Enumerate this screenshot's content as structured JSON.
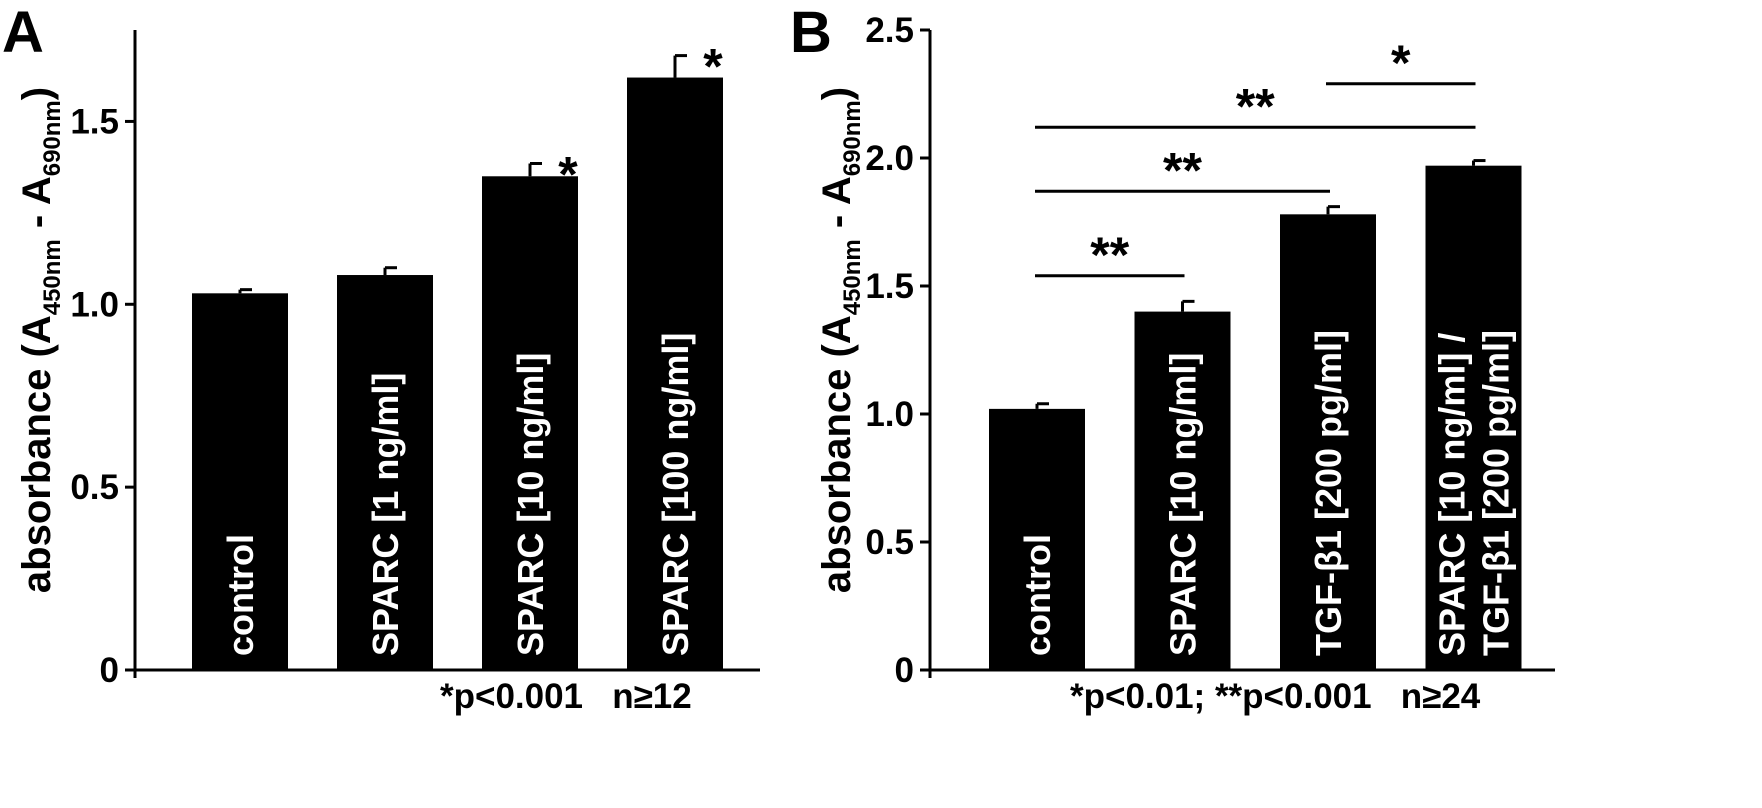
{
  "chart_data": [
    {
      "type": "bar",
      "panel_label": "A",
      "ylabel_main": "absorbance (A",
      "ylabel_sub1": "450nm",
      "ylabel_mid": " - A",
      "ylabel_sub2": "690nm",
      "ylabel_end": ")",
      "ylim": [
        0,
        1.75
      ],
      "yticks": [
        0,
        0.5,
        1.0,
        1.5
      ],
      "ytick_labels": [
        "0",
        "0.5",
        "1.0",
        "1.5"
      ],
      "categories": [
        "control",
        "SPARC [1 ng/ml]",
        "SPARC [10 ng/ml]",
        "SPARC [100 ng/ml]"
      ],
      "category_lines": [
        [
          "control"
        ],
        [
          "SPARC [1 ng/ml]"
        ],
        [
          "SPARC [10 ng/ml]"
        ],
        [
          "SPARC [100 ng/ml]"
        ]
      ],
      "values": [
        1.03,
        1.08,
        1.35,
        1.62
      ],
      "errors": [
        0.01,
        0.02,
        0.035,
        0.06
      ],
      "bar_markers": [
        "",
        "",
        "*",
        "*"
      ],
      "significance": [],
      "footnote": "*p<0.001   n≥12"
    },
    {
      "type": "bar",
      "panel_label": "B",
      "ylabel_main": "absorbance (A",
      "ylabel_sub1": "450nm",
      "ylabel_mid": " - A",
      "ylabel_sub2": "690nm",
      "ylabel_end": ")",
      "ylim": [
        0,
        2.5
      ],
      "yticks": [
        0,
        0.5,
        1.0,
        1.5,
        2.0,
        2.5
      ],
      "ytick_labels": [
        "0",
        "0.5",
        "1.0",
        "1.5",
        "2.0",
        "2.5"
      ],
      "categories": [
        "control",
        "SPARC [10 ng/ml]",
        "TGF-β1 [200 pg/ml]",
        "SPARC [10 ng/ml] / TGF-β1 [200 pg/ml]"
      ],
      "category_lines": [
        [
          "control"
        ],
        [
          "SPARC [10 ng/ml]"
        ],
        [
          "TGF-β1 [200 pg/ml]"
        ],
        [
          "SPARC [10 ng/ml] /",
          "TGF-β1 [200 pg/ml]"
        ]
      ],
      "values": [
        1.02,
        1.4,
        1.78,
        1.97
      ],
      "errors": [
        0.02,
        0.04,
        0.03,
        0.02
      ],
      "bar_markers": [
        "",
        "",
        "",
        ""
      ],
      "significance": [
        {
          "from": 0,
          "to": 1,
          "level": 1.54,
          "label": "**"
        },
        {
          "from": 0,
          "to": 2,
          "level": 1.87,
          "label": "**"
        },
        {
          "from": 0,
          "to": 3,
          "level": 2.12,
          "label": "**"
        },
        {
          "from": 2,
          "to": 3,
          "level": 2.29,
          "label": "*"
        }
      ],
      "footnote": "*p<0.01; **p<0.001   n≥24"
    }
  ]
}
